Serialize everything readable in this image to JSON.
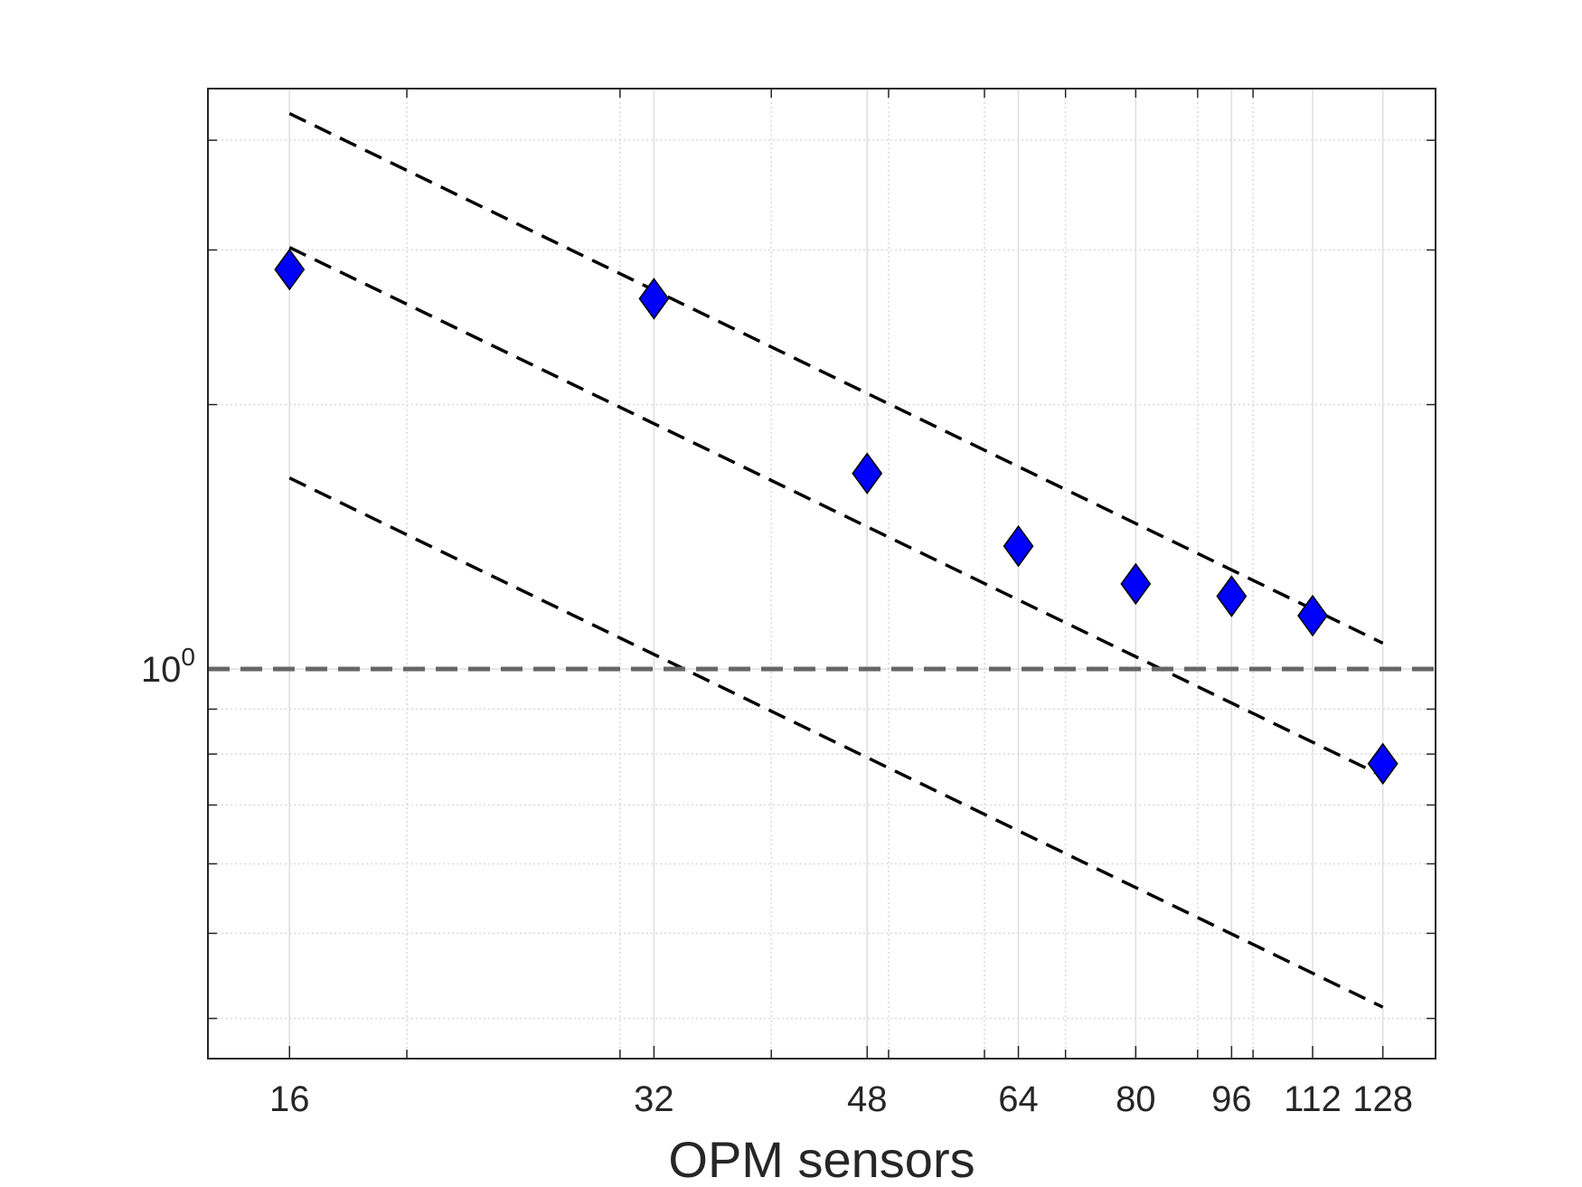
{
  "chart_data": {
    "type": "scatter",
    "title": "",
    "xlabel": "OPM sensors",
    "ylabel": "",
    "xscale": "log",
    "yscale": "log",
    "xlim": [
      13.7,
      141.5
    ],
    "ylim": [
      0.36,
      4.58
    ],
    "x_ticks": [
      16,
      32,
      48,
      64,
      80,
      96,
      112,
      128
    ],
    "x_tick_labels": [
      "16",
      "32",
      "48",
      "64",
      "80",
      "96",
      "112",
      "128"
    ],
    "y_ticks": [
      {
        "value": 1,
        "base": "10",
        "exponent": "0"
      }
    ],
    "grid": true,
    "minor_grid": true,
    "series": [
      {
        "marker": "diamond",
        "color": "#0000ff",
        "x": [
          16,
          32,
          48,
          64,
          80,
          96,
          112,
          128
        ],
        "y": [
          2.85,
          2.64,
          1.67,
          1.38,
          1.25,
          1.21,
          1.15,
          0.78
        ]
      }
    ],
    "reference_lines": [
      {
        "style": "dashed",
        "color": "#000000",
        "x": [
          16,
          128
        ],
        "y": [
          4.29,
          1.07
        ]
      },
      {
        "style": "dashed",
        "color": "#000000",
        "x": [
          16,
          128
        ],
        "y": [
          3.02,
          0.755
        ]
      },
      {
        "style": "dashed",
        "color": "#000000",
        "x": [
          16,
          128
        ],
        "y": [
          1.65,
          0.412
        ]
      },
      {
        "style": "dashed",
        "color": "#666666",
        "orientation": "horizontal",
        "y": 1
      }
    ]
  }
}
